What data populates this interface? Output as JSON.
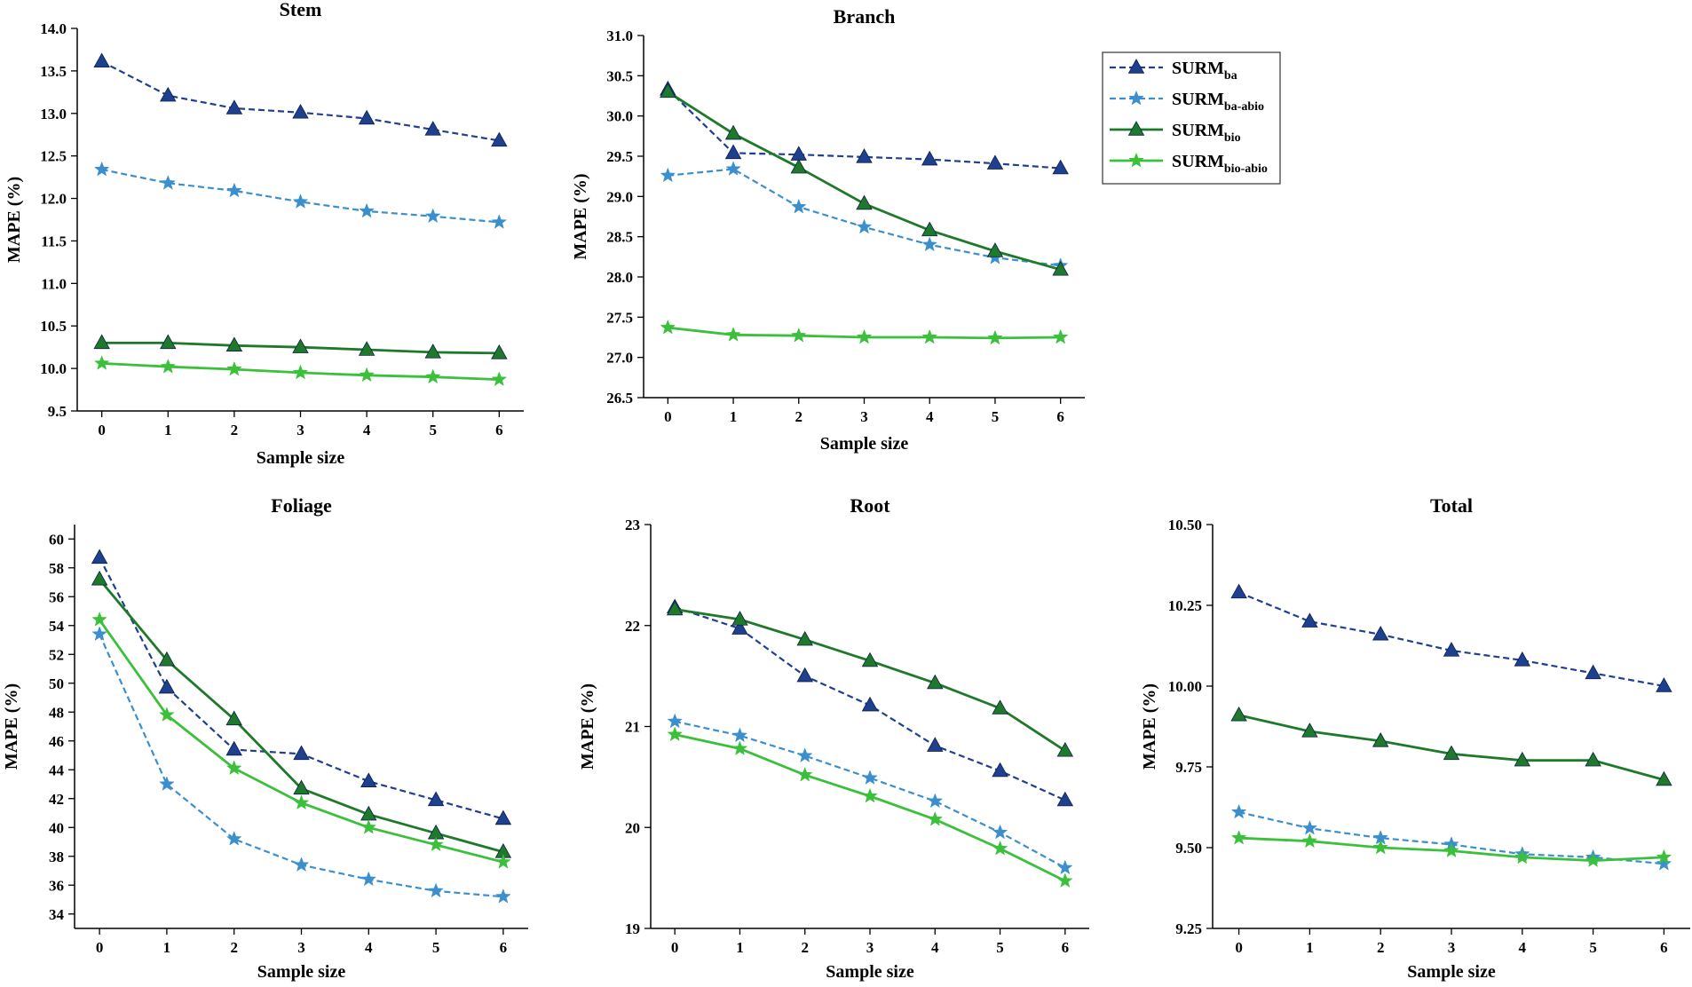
{
  "figure": {
    "legend": [
      {
        "base": "SURM",
        "sub": "ba",
        "color": "#1f3f8f",
        "dash": "dashed",
        "marker": "triangle"
      },
      {
        "base": "SURM",
        "sub": "ba-abio",
        "color": "#3b8fcc",
        "dash": "dashed",
        "marker": "star"
      },
      {
        "base": "SURM",
        "sub": "bio",
        "color": "#1e7a2a",
        "dash": "solid",
        "marker": "triangle"
      },
      {
        "base": "SURM",
        "sub": "bio-abio",
        "color": "#3bc03b",
        "dash": "solid",
        "marker": "star"
      }
    ]
  },
  "chart_data": [
    {
      "type": "line",
      "title": "Stem",
      "xlabel": "Sample size",
      "ylabel": "MAPE (%)",
      "x": [
        0,
        1,
        2,
        3,
        4,
        5,
        6
      ],
      "xticks": [
        "0",
        "1",
        "2",
        "3",
        "4",
        "5",
        "6"
      ],
      "ylim": [
        9.5,
        14.0
      ],
      "yticks": [
        "9.5",
        "10.0",
        "10.5",
        "11.0",
        "11.5",
        "12.0",
        "12.5",
        "13.0",
        "13.5",
        "14.0"
      ],
      "series": [
        {
          "name": "SURM_ba",
          "values": [
            13.61,
            13.21,
            13.06,
            13.01,
            12.94,
            12.81,
            12.68
          ]
        },
        {
          "name": "SURM_ba-abio",
          "values": [
            12.34,
            12.18,
            12.09,
            11.96,
            11.85,
            11.79,
            11.72
          ]
        },
        {
          "name": "SURM_bio",
          "values": [
            10.3,
            10.3,
            10.27,
            10.25,
            10.22,
            10.19,
            10.18
          ]
        },
        {
          "name": "SURM_bio-abio",
          "values": [
            10.06,
            10.02,
            9.99,
            9.95,
            9.92,
            9.9,
            9.87
          ]
        }
      ]
    },
    {
      "type": "line",
      "title": "Branch",
      "xlabel": "Sample size",
      "ylabel": "MAPE (%)",
      "x": [
        0,
        1,
        2,
        3,
        4,
        5,
        6
      ],
      "xticks": [
        "0",
        "1",
        "2",
        "3",
        "4",
        "5",
        "6"
      ],
      "ylim": [
        26.5,
        31.0
      ],
      "yticks": [
        "26.5",
        "27.0",
        "27.5",
        "28.0",
        "28.5",
        "29.0",
        "29.5",
        "30.0",
        "30.5",
        "31.0"
      ],
      "series": [
        {
          "name": "SURM_ba",
          "values": [
            30.33,
            29.54,
            29.52,
            29.49,
            29.46,
            29.41,
            29.35
          ]
        },
        {
          "name": "SURM_ba-abio",
          "values": [
            29.26,
            29.34,
            28.87,
            28.62,
            28.4,
            28.24,
            28.14
          ]
        },
        {
          "name": "SURM_bio",
          "values": [
            30.3,
            29.78,
            29.36,
            28.91,
            28.58,
            28.32,
            28.09
          ]
        },
        {
          "name": "SURM_bio-abio",
          "values": [
            27.37,
            27.28,
            27.27,
            27.25,
            27.25,
            27.24,
            27.25
          ]
        }
      ]
    },
    {
      "type": "line",
      "title": "Foliage",
      "xlabel": "Sample size",
      "ylabel": "MAPE (%)",
      "x": [
        0,
        1,
        2,
        3,
        4,
        5,
        6
      ],
      "xticks": [
        "0",
        "1",
        "2",
        "3",
        "4",
        "5",
        "6"
      ],
      "ylim": [
        33,
        61
      ],
      "yticks": [
        "34",
        "36",
        "38",
        "40",
        "42",
        "44",
        "46",
        "48",
        "50",
        "52",
        "54",
        "56",
        "58",
        "60"
      ],
      "series": [
        {
          "name": "SURM_ba",
          "values": [
            58.7,
            49.7,
            45.4,
            45.1,
            43.2,
            41.9,
            40.6
          ]
        },
        {
          "name": "SURM_ba-abio",
          "values": [
            53.4,
            43.0,
            39.2,
            37.4,
            36.4,
            35.6,
            35.2
          ]
        },
        {
          "name": "SURM_bio",
          "values": [
            57.2,
            51.6,
            47.5,
            42.7,
            40.9,
            39.6,
            38.3
          ]
        },
        {
          "name": "SURM_bio-abio",
          "values": [
            54.4,
            47.8,
            44.1,
            41.7,
            40.0,
            38.8,
            37.6
          ]
        }
      ]
    },
    {
      "type": "line",
      "title": "Root",
      "xlabel": "Sample size",
      "ylabel": "MAPE (%)",
      "x": [
        0,
        1,
        2,
        3,
        4,
        5,
        6
      ],
      "xticks": [
        "0",
        "1",
        "2",
        "3",
        "4",
        "5",
        "6"
      ],
      "ylim": [
        19,
        23
      ],
      "yticks": [
        "19",
        "20",
        "21",
        "22",
        "23"
      ],
      "series": [
        {
          "name": "SURM_ba",
          "values": [
            22.18,
            21.97,
            21.5,
            21.21,
            20.81,
            20.56,
            20.27
          ]
        },
        {
          "name": "SURM_ba-abio",
          "values": [
            21.05,
            20.91,
            20.71,
            20.49,
            20.26,
            19.95,
            19.6
          ]
        },
        {
          "name": "SURM_bio",
          "values": [
            22.16,
            22.06,
            21.86,
            21.65,
            21.43,
            21.18,
            20.76
          ]
        },
        {
          "name": "SURM_bio-abio",
          "values": [
            20.92,
            20.78,
            20.52,
            20.31,
            20.08,
            19.79,
            19.47
          ]
        }
      ]
    },
    {
      "type": "line",
      "title": "Total",
      "xlabel": "Sample size",
      "ylabel": "MAPE (%)",
      "x": [
        0,
        1,
        2,
        3,
        4,
        5,
        6
      ],
      "xticks": [
        "0",
        "1",
        "2",
        "3",
        "4",
        "5",
        "6"
      ],
      "ylim": [
        9.25,
        10.5
      ],
      "yticks": [
        "9.25",
        "9.50",
        "9.75",
        "10.00",
        "10.25",
        "10.50"
      ],
      "series": [
        {
          "name": "SURM_ba",
          "values": [
            10.29,
            10.2,
            10.16,
            10.11,
            10.08,
            10.04,
            10.0
          ]
        },
        {
          "name": "SURM_ba-abio",
          "values": [
            9.61,
            9.56,
            9.53,
            9.51,
            9.48,
            9.47,
            9.45
          ]
        },
        {
          "name": "SURM_bio",
          "values": [
            9.91,
            9.86,
            9.83,
            9.79,
            9.77,
            9.77,
            9.71
          ]
        },
        {
          "name": "SURM_bio-abio",
          "values": [
            9.53,
            9.52,
            9.5,
            9.49,
            9.47,
            9.46,
            9.47
          ]
        }
      ]
    }
  ]
}
